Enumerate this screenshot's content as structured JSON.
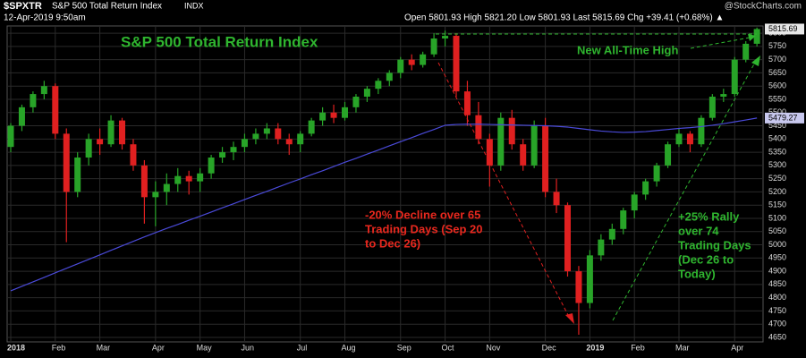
{
  "chart_data": {
    "type": "candlestick",
    "symbol": "$SPXTR",
    "name": "S&P 500 Total Return Index",
    "exchange": "INDX",
    "date": "12-Apr-2019 9:50am",
    "quote": "Open 5801.93  High 5821.20  Low 5801.93  Last 5815.69  Chg +39.41 (+0.68%) ▲",
    "credit": "@StockCharts.com",
    "title": "S&P 500 Total Return Index",
    "annotations": [
      {
        "lines": [
          "-20% Decline over 65",
          "Trading Days (Sep 20",
          "to Dec 26)"
        ],
        "color": "#e8281e"
      },
      {
        "lines": [
          "New All-Time High"
        ],
        "color": "#2fb52f"
      },
      {
        "lines": [
          "+25% Rally",
          "over 74",
          "Trading Days",
          "(Dec 26 to",
          "Today)"
        ],
        "color": "#2fb52f"
      }
    ],
    "categories": [
      "2018",
      null,
      null,
      null,
      "Feb",
      null,
      null,
      null,
      "Mar",
      null,
      null,
      null,
      null,
      "Apr",
      null,
      null,
      null,
      "May",
      null,
      null,
      null,
      "Jun",
      null,
      null,
      null,
      null,
      "Jul",
      null,
      null,
      null,
      "Aug",
      null,
      null,
      null,
      null,
      "Sep",
      null,
      null,
      null,
      "Oct",
      null,
      null,
      null,
      "Nov",
      null,
      null,
      null,
      null,
      "Dec",
      null,
      null,
      null,
      "2019",
      null,
      null,
      null,
      "Feb",
      null,
      null,
      null,
      "Mar",
      null,
      null,
      null,
      null,
      "Apr",
      null,
      null
    ],
    "open": [
      5370,
      5450,
      5520,
      5570,
      5600,
      5420,
      5200,
      5330,
      5400,
      5380,
      5470,
      5380,
      5300,
      5180,
      5200,
      5230,
      5260,
      5240,
      5270,
      5330,
      5350,
      5370,
      5400,
      5420,
      5440,
      5400,
      5380,
      5420,
      5470,
      5500,
      5480,
      5520,
      5560,
      5590,
      5620,
      5650,
      5700,
      5680,
      5720,
      5780,
      5790,
      5580,
      5490,
      5400,
      5300,
      5480,
      5380,
      5300,
      5450,
      5200,
      5150,
      4900,
      4780,
      4960,
      5020,
      5060,
      5130,
      5190,
      5240,
      5300,
      5380,
      5420,
      5380,
      5480,
      5560,
      5570,
      5700,
      5760
    ],
    "high": [
      5460,
      5530,
      5580,
      5620,
      5610,
      5440,
      5350,
      5420,
      5440,
      5490,
      5480,
      5400,
      5320,
      5240,
      5270,
      5290,
      5280,
      5290,
      5340,
      5370,
      5390,
      5420,
      5440,
      5460,
      5460,
      5420,
      5430,
      5480,
      5520,
      5530,
      5540,
      5570,
      5600,
      5630,
      5660,
      5710,
      5720,
      5730,
      5800,
      5810,
      5800,
      5620,
      5540,
      5420,
      5500,
      5510,
      5400,
      5470,
      5480,
      5250,
      5160,
      4920,
      4980,
      5040,
      5080,
      5140,
      5200,
      5250,
      5310,
      5390,
      5440,
      5430,
      5490,
      5570,
      5590,
      5710,
      5770,
      5821.2
    ],
    "low": [
      5350,
      5430,
      5500,
      5550,
      5400,
      5010,
      5180,
      5300,
      5340,
      5370,
      5360,
      5280,
      5080,
      5070,
      5150,
      5200,
      5190,
      5200,
      5250,
      5310,
      5320,
      5350,
      5380,
      5400,
      5380,
      5340,
      5350,
      5410,
      5450,
      5460,
      5470,
      5500,
      5540,
      5570,
      5600,
      5630,
      5660,
      5670,
      5710,
      5750,
      5560,
      5450,
      5380,
      5220,
      5280,
      5360,
      5280,
      5290,
      5180,
      5120,
      4880,
      4660,
      4760,
      4940,
      5000,
      5040,
      5100,
      5170,
      5220,
      5290,
      5370,
      5350,
      5370,
      5470,
      5540,
      5560,
      5690,
      5750
    ],
    "close": [
      5450,
      5520,
      5570,
      5600,
      5420,
      5200,
      5330,
      5400,
      5380,
      5470,
      5380,
      5300,
      5180,
      5200,
      5230,
      5260,
      5240,
      5270,
      5330,
      5350,
      5370,
      5400,
      5420,
      5440,
      5400,
      5380,
      5420,
      5470,
      5500,
      5480,
      5520,
      5560,
      5590,
      5620,
      5650,
      5700,
      5680,
      5720,
      5780,
      5790,
      5580,
      5490,
      5400,
      5300,
      5480,
      5380,
      5300,
      5450,
      5200,
      5150,
      4900,
      4780,
      4960,
      5020,
      5060,
      5130,
      5190,
      5240,
      5300,
      5380,
      5420,
      5380,
      5480,
      5560,
      5570,
      5700,
      5760,
      5815.69
    ],
    "up_color": "#28a428",
    "down_color": "#e02020",
    "ma": {
      "color": "#4a4ad8",
      "values": [
        4826,
        4843,
        4860,
        4877,
        4894,
        4911,
        4928,
        4945,
        4962,
        4979,
        4996,
        5013,
        5030,
        5046,
        5062,
        5077,
        5093,
        5108,
        5124,
        5140,
        5155,
        5171,
        5187,
        5202,
        5218,
        5234,
        5249,
        5265,
        5280,
        5296,
        5312,
        5327,
        5343,
        5358,
        5374,
        5390,
        5405,
        5421,
        5436,
        5452,
        5455,
        5456,
        5456,
        5455,
        5454,
        5453,
        5452,
        5451,
        5450,
        5448,
        5445,
        5440,
        5435,
        5430,
        5427,
        5425,
        5426,
        5428,
        5432,
        5436,
        5440,
        5443,
        5447,
        5452,
        5458,
        5465,
        5472,
        5479.27
      ]
    },
    "ylim": [
      4633,
      5824
    ],
    "yticks": [
      4650,
      4700,
      4750,
      4800,
      4850,
      4900,
      4950,
      5000,
      5050,
      5100,
      5150,
      5200,
      5250,
      5300,
      5350,
      5400,
      5450,
      5500,
      5550,
      5600,
      5650,
      5700,
      5750,
      5800
    ],
    "grid": true
  }
}
